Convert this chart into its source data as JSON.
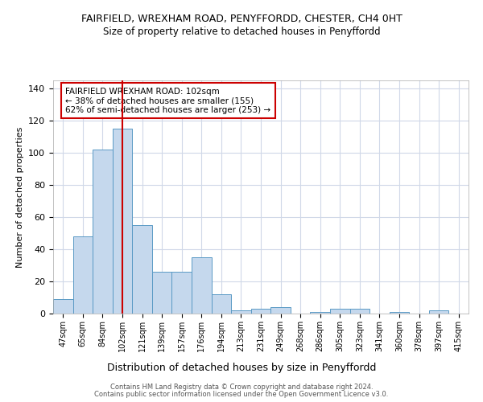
{
  "title1": "FAIRFIELD, WREXHAM ROAD, PENYFFORDD, CHESTER, CH4 0HT",
  "title2": "Size of property relative to detached houses in Penyffordd",
  "xlabel": "Distribution of detached houses by size in Penyffordd",
  "ylabel": "Number of detached properties",
  "categories": [
    "47sqm",
    "65sqm",
    "84sqm",
    "102sqm",
    "121sqm",
    "139sqm",
    "157sqm",
    "176sqm",
    "194sqm",
    "213sqm",
    "231sqm",
    "249sqm",
    "268sqm",
    "286sqm",
    "305sqm",
    "323sqm",
    "341sqm",
    "360sqm",
    "378sqm",
    "397sqm",
    "415sqm"
  ],
  "values": [
    9,
    48,
    102,
    115,
    55,
    26,
    26,
    35,
    12,
    2,
    3,
    4,
    0,
    1,
    3,
    3,
    0,
    1,
    0,
    2,
    0
  ],
  "bar_color": "#c5d8ed",
  "bar_edge_color": "#5a9ac5",
  "vline_x": 3,
  "vline_color": "#cc0000",
  "annotation_text": "FAIRFIELD WREXHAM ROAD: 102sqm\n← 38% of detached houses are smaller (155)\n62% of semi-detached houses are larger (253) →",
  "annotation_box_color": "#ffffff",
  "annotation_box_edge_color": "#cc0000",
  "ylim": [
    0,
    145
  ],
  "yticks": [
    0,
    20,
    40,
    60,
    80,
    100,
    120,
    140
  ],
  "footer1": "Contains HM Land Registry data © Crown copyright and database right 2024.",
  "footer2": "Contains public sector information licensed under the Open Government Licence v3.0.",
  "bg_color": "#ffffff",
  "grid_color": "#d0d8e8",
  "title1_fontsize": 9,
  "title2_fontsize": 8.5,
  "xlabel_fontsize": 9,
  "ylabel_fontsize": 8,
  "annot_fontsize": 7.5,
  "footer_fontsize": 6,
  "xtick_fontsize": 7,
  "ytick_fontsize": 8
}
